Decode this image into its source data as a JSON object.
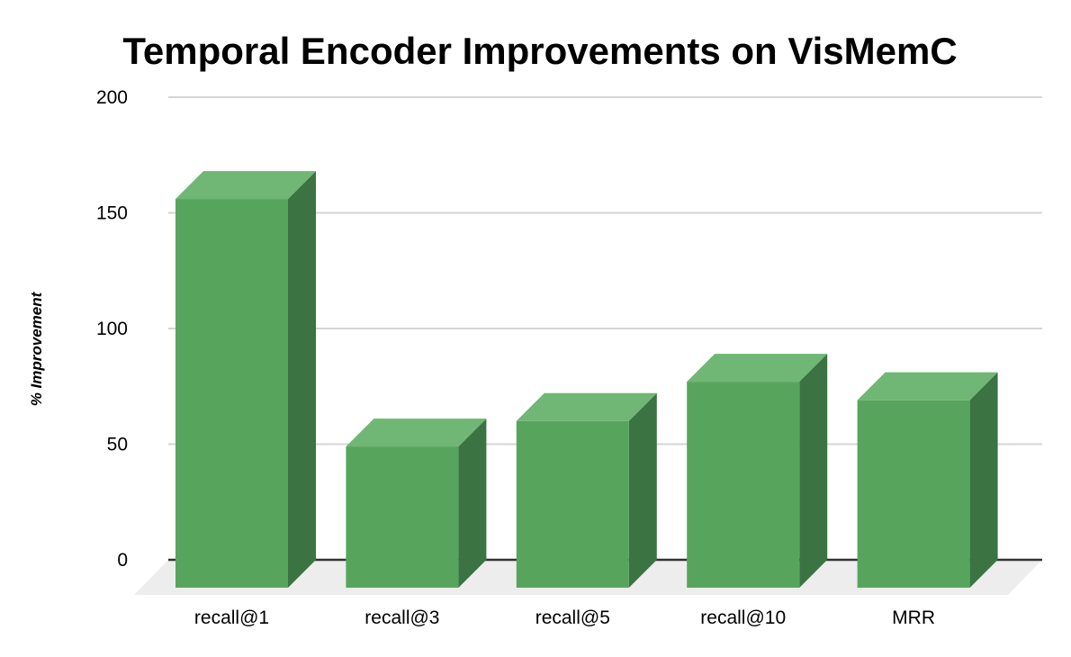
{
  "chart_data": {
    "type": "bar",
    "effect": "3d-column",
    "title": "Temporal Encoder Improvements on VisMemC",
    "xlabel": "",
    "ylabel": "% Improvement",
    "categories": [
      "recall@1",
      "recall@3",
      "recall@5",
      "recall@10",
      "MRR"
    ],
    "values": [
      156,
      49,
      60,
      77,
      69
    ],
    "ylim": [
      0,
      200
    ],
    "yticks": [
      0,
      50,
      100,
      150,
      200
    ],
    "grid": true,
    "legend_position": "none",
    "colors": {
      "bar_front": "#57a55d",
      "bar_top": "#70b674",
      "bar_side": "#3b7343",
      "gridline": "#d5d5d5",
      "baseline": "#333333",
      "floor": "#ededed",
      "background": "#ffffff",
      "text": "#000000"
    }
  }
}
